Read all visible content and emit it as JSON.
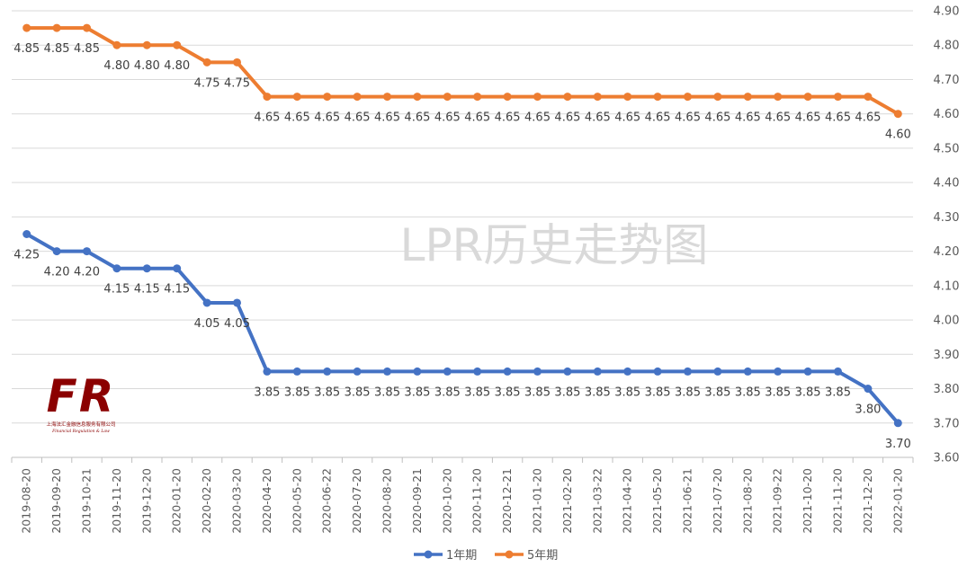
{
  "chart_data": {
    "type": "line",
    "title": "LPR历史走势图",
    "categories": [
      "2019-08-20",
      "2019-09-20",
      "2019-10-21",
      "2019-11-20",
      "2019-12-20",
      "2020-01-20",
      "2020-02-20",
      "2020-03-20",
      "2020-04-20",
      "2020-05-20",
      "2020-06-22",
      "2020-07-20",
      "2020-08-20",
      "2020-09-21",
      "2020-10-20",
      "2020-11-20",
      "2020-12-21",
      "2021-01-20",
      "2021-02-20",
      "2021-03-22",
      "2021-04-20",
      "2021-05-20",
      "2021-06-21",
      "2021-07-20",
      "2021-08-20",
      "2021-09-22",
      "2021-10-20",
      "2021-11-20",
      "2021-12-20",
      "2022-01-20"
    ],
    "series": [
      {
        "name": "1年期",
        "color": "#4472c4",
        "values": [
          4.25,
          4.2,
          4.2,
          4.15,
          4.15,
          4.15,
          4.05,
          4.05,
          3.85,
          3.85,
          3.85,
          3.85,
          3.85,
          3.85,
          3.85,
          3.85,
          3.85,
          3.85,
          3.85,
          3.85,
          3.85,
          3.85,
          3.85,
          3.85,
          3.85,
          3.85,
          3.85,
          3.85,
          3.8,
          3.7
        ],
        "labels": [
          "4.25",
          "4.20",
          "4.20",
          "4.15",
          "4.15",
          "4.15",
          "4.05",
          "4.05",
          "3.85",
          "3.85",
          "3.85",
          "3.85",
          "3.85",
          "3.85",
          "3.85",
          "3.85",
          "3.85",
          "3.85",
          "3.85",
          "3.85",
          "3.85",
          "3.85",
          "3.85",
          "3.85",
          "3.85",
          "3.85",
          "3.85",
          "3.85",
          "3.80",
          "3.70"
        ]
      },
      {
        "name": "5年期",
        "color": "#ed7d31",
        "values": [
          4.85,
          4.85,
          4.85,
          4.8,
          4.8,
          4.8,
          4.75,
          4.75,
          4.65,
          4.65,
          4.65,
          4.65,
          4.65,
          4.65,
          4.65,
          4.65,
          4.65,
          4.65,
          4.65,
          4.65,
          4.65,
          4.65,
          4.65,
          4.65,
          4.65,
          4.65,
          4.65,
          4.65,
          4.65,
          4.6
        ],
        "labels": [
          "4.85",
          "4.85",
          "4.85",
          "4.80",
          "4.80",
          "4.80",
          "4.75",
          "4.75",
          "4.65",
          "4.65",
          "4.65",
          "4.65",
          "4.65",
          "4.65",
          "4.65",
          "4.65",
          "4.65",
          "4.65",
          "4.65",
          "4.65",
          "4.65",
          "4.65",
          "4.65",
          "4.65",
          "4.65",
          "4.65",
          "4.65",
          "4.65",
          "4.65",
          "4.60"
        ]
      }
    ],
    "ylim": [
      3.6,
      4.9
    ],
    "yticks": [
      "3.60",
      "3.70",
      "3.80",
      "3.90",
      "4.00",
      "4.10",
      "4.20",
      "4.30",
      "4.40",
      "4.50",
      "4.60",
      "4.70",
      "4.80",
      "4.90"
    ],
    "y_axis_side": "right",
    "grid": true,
    "legend_position": "bottom-center"
  },
  "logo": {
    "mark": "FR",
    "subtitle": "上海法汇金融信息服务有限公司",
    "tagline": "Financial Regulation & Law",
    "color": "#8b0000"
  }
}
